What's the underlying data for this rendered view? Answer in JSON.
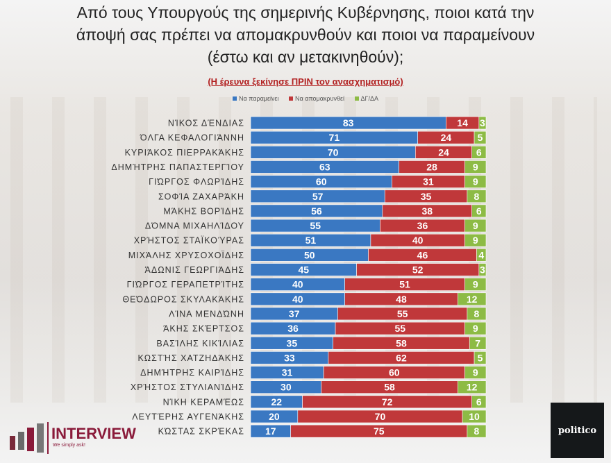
{
  "title_lines": [
    "Από τους Υπουργούς της σημερινής Κυβέρνησης, ποιοι κατά την",
    "άποψή σας πρέπει να απομακρυνθούν και ποιοι να παραμείνουν",
    "(έστω και αν μετακινηθούν);"
  ],
  "subtitle": "(Η έρευνα ξεκίνησε ΠΡΙΝ τον ανασχηματισμό)",
  "logos": {
    "left": "INTERVIEW",
    "left_tagline": "We simply ask!",
    "right": "politico"
  },
  "chart_data": {
    "type": "bar",
    "orientation": "horizontal",
    "stacked": true,
    "legend_position": "top",
    "xlim": [
      0,
      100
    ],
    "categories": [
      "ΝΊΚΟΣ ΔΈΝΔΙΑΣ",
      "ΌΛΓΑ ΚΕΦΑΛΟΓΙΆΝΝΗ",
      "ΚΥΡΙΆΚΟΣ ΠΙΕΡΡΑΚΆΚΗΣ",
      "ΔΗΜΉΤΡΗΣ ΠΑΠΑΣΤΕΡΓΊΟΥ",
      "ΓΙΏΡΓΟΣ ΦΛΩΡΊΔΗΣ",
      "ΣΟΦΊΑ ΖΑΧΑΡΆΚΗ",
      "ΜΆΚΗΣ ΒΟΡΊΔΗΣ",
      "ΔΌΜΝΑ ΜΙΧΑΗΛΊΔΟΥ",
      "ΧΡΉΣΤΟΣ ΣΤΑΪΚΟΎΡΑΣ",
      "ΜΙΧΆΛΗΣ ΧΡΥΣΟΧΟΪΔΗΣ",
      "ΆΔΩΝΙΣ ΓΕΩΡΓΙΆΔΗΣ",
      "ΓΙΏΡΓΟΣ ΓΕΡΑΠΕΤΡΊΤΗΣ",
      "ΘΕΌΔΩΡΟΣ ΣΚΥΛΑΚΆΚΗΣ",
      "ΛΊΝΑ ΜΕΝΔΏΝΗ",
      "ΆΚΗΣ ΣΚΈΡΤΣΟΣ",
      "ΒΑΣΊΛΗΣ ΚΙΚΊΛΙΑΣ",
      "ΚΩΣΤΉΣ ΧΑΤΖΗΔΆΚΗΣ",
      "ΔΗΜΉΤΡΗΣ ΚΑΙΡΊΔΗΣ",
      "ΧΡΉΣΤΟΣ ΣΤΥΛΙΑΝΊΔΗΣ",
      "ΝΊΚΗ ΚΕΡΑΜΈΩΣ",
      "ΛΕΥΤΈΡΗΣ ΑΥΓΕΝΆΚΗΣ",
      "ΚΏΣΤΑΣ ΣΚΡΈΚΑΣ"
    ],
    "series": [
      {
        "name": "Να παραμείνει",
        "color": "#3a78c2",
        "values": [
          83,
          71,
          70,
          63,
          60,
          57,
          56,
          55,
          51,
          50,
          45,
          40,
          40,
          37,
          36,
          35,
          33,
          31,
          30,
          22,
          20,
          17
        ]
      },
      {
        "name": "Να απομακρυνθεί",
        "color": "#c0383a",
        "values": [
          14,
          24,
          24,
          28,
          31,
          35,
          38,
          36,
          40,
          46,
          52,
          51,
          48,
          55,
          55,
          58,
          62,
          60,
          58,
          72,
          70,
          75
        ]
      },
      {
        "name": "ΔΓ/ΔΑ",
        "color": "#8dbb45",
        "values": [
          3,
          5,
          6,
          9,
          9,
          8,
          6,
          9,
          9,
          4,
          3,
          9,
          12,
          8,
          9,
          7,
          5,
          9,
          12,
          6,
          10,
          8
        ]
      }
    ]
  }
}
